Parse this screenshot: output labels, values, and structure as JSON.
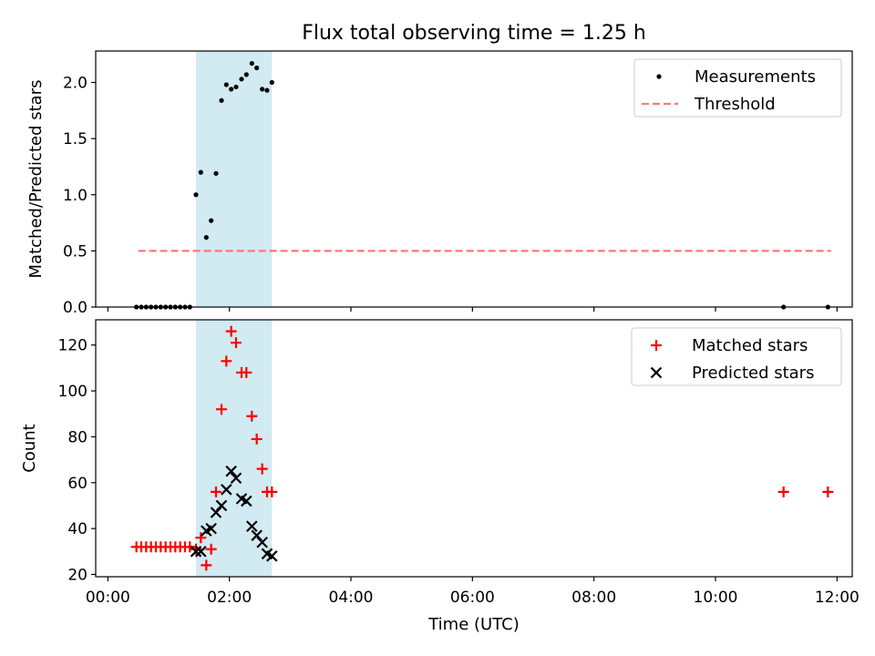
{
  "chart_data": {
    "title": "Flux total observing time = 1.25 h",
    "xlabel": "Time (UTC)",
    "x_unit": "hours",
    "xlim": [
      -0.2,
      12.25
    ],
    "x_ticks": [
      0,
      2,
      4,
      6,
      8,
      10,
      12
    ],
    "x_tick_labels": [
      "00:00",
      "02:00",
      "04:00",
      "06:00",
      "08:00",
      "10:00",
      "12:00"
    ],
    "observing_window": [
      1.45,
      2.7
    ],
    "colors": {
      "window": "#add8e6",
      "threshold": "#ff7777",
      "measurements": "#000000",
      "matched": "#ff0000",
      "predicted": "#000000"
    },
    "panels": [
      {
        "type": "scatter",
        "ylabel": "Matched/Predicted stars",
        "ylim": [
          0,
          2.28
        ],
        "y_ticks": [
          0,
          0.5,
          1,
          1.5,
          2
        ],
        "y_tick_labels": [
          "0.0",
          "0.5",
          "1.0",
          "1.5",
          "2.0"
        ],
        "legend": {
          "position": "top-right",
          "entries": [
            "Measurements",
            "Threshold"
          ]
        },
        "threshold": {
          "name": "Threshold",
          "value": 0.5,
          "x_range": [
            0.5,
            11.9
          ]
        },
        "series": [
          {
            "name": "Measurements",
            "marker": "dot",
            "x": [
              0.47,
              0.55,
              0.63,
              0.71,
              0.79,
              0.87,
              0.95,
              1.03,
              1.11,
              1.19,
              1.27,
              1.35,
              1.45,
              1.53,
              1.62,
              1.7,
              1.78,
              1.87,
              1.95,
              2.03,
              2.11,
              2.2,
              2.28,
              2.37,
              2.45,
              2.54,
              2.62,
              2.7,
              11.12,
              11.85
            ],
            "y": [
              0,
              0,
              0,
              0,
              0,
              0,
              0,
              0,
              0,
              0,
              0,
              0,
              1.0,
              1.2,
              0.62,
              0.77,
              1.19,
              1.84,
              1.98,
              1.94,
              1.96,
              2.03,
              2.07,
              2.17,
              2.13,
              1.94,
              1.93,
              2.0,
              0,
              0
            ]
          }
        ]
      },
      {
        "type": "scatter",
        "ylabel": "Count",
        "ylim": [
          19,
          131
        ],
        "y_ticks": [
          20,
          40,
          60,
          80,
          100,
          120
        ],
        "y_tick_labels": [
          "20",
          "40",
          "60",
          "80",
          "100",
          "120"
        ],
        "legend": {
          "position": "top-right",
          "entries": [
            "Matched stars",
            "Predicted stars"
          ]
        },
        "series": [
          {
            "name": "Matched stars",
            "marker": "plus",
            "x": [
              0.47,
              0.55,
              0.63,
              0.71,
              0.79,
              0.87,
              0.95,
              1.03,
              1.11,
              1.19,
              1.27,
              1.35,
              1.45,
              1.53,
              1.62,
              1.7,
              1.78,
              1.87,
              1.95,
              2.03,
              2.11,
              2.2,
              2.28,
              2.37,
              2.45,
              2.54,
              2.62,
              2.7,
              11.12,
              11.85
            ],
            "y": [
              32,
              32,
              32,
              32,
              32,
              32,
              32,
              32,
              32,
              32,
              32,
              32,
              31,
              36,
              24,
              31,
              56,
              92,
              113,
              126,
              121,
              108,
              108,
              89,
              79,
              66,
              56,
              56,
              56,
              56
            ]
          },
          {
            "name": "Predicted stars",
            "marker": "x",
            "x": [
              1.45,
              1.53,
              1.62,
              1.7,
              1.78,
              1.87,
              1.95,
              2.03,
              2.11,
              2.2,
              2.28,
              2.37,
              2.45,
              2.54,
              2.62,
              2.7
            ],
            "y": [
              30,
              30,
              39,
              40,
              47,
              50,
              57,
              65,
              62,
              53,
              52,
              41,
              37,
              34,
              29,
              28
            ]
          }
        ]
      }
    ]
  }
}
